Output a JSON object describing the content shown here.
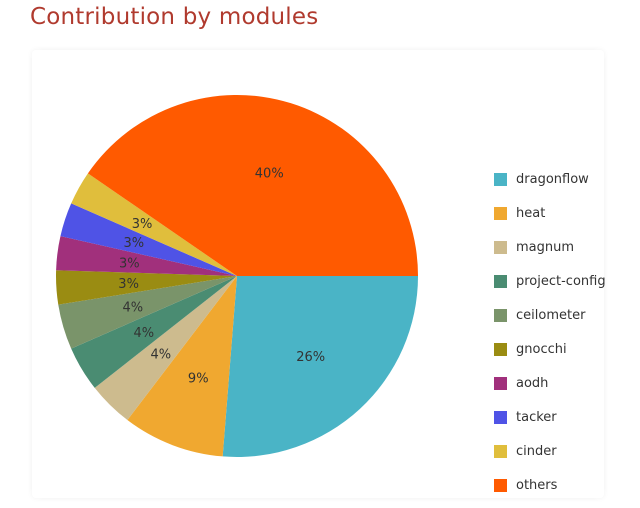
{
  "header": {
    "title": "Contribution by modules"
  },
  "chart_data": {
    "type": "pie",
    "title": "Contribution by modules",
    "legend_position": "right",
    "slices": [
      {
        "label": "dragonflow",
        "value": 26,
        "display": "26%",
        "color": "#4ab4c6"
      },
      {
        "label": "heat",
        "value": 9,
        "display": "9%",
        "color": "#f0a830"
      },
      {
        "label": "magnum",
        "value": 4,
        "display": "4%",
        "color": "#cdbb8e"
      },
      {
        "label": "project-config",
        "value": 4,
        "display": "4%",
        "color": "#4a8c72"
      },
      {
        "label": "ceilometer",
        "value": 4,
        "display": "4%",
        "color": "#7a946a"
      },
      {
        "label": "gnocchi",
        "value": 3,
        "display": "3%",
        "color": "#9a8c12"
      },
      {
        "label": "aodh",
        "value": 3,
        "display": "3%",
        "color": "#a1307c"
      },
      {
        "label": "tacker",
        "value": 3,
        "display": "3%",
        "color": "#4f53e6"
      },
      {
        "label": "cinder",
        "value": 3,
        "display": "3%",
        "color": "#e0be3c"
      },
      {
        "label": "others",
        "value": 40,
        "display": "40%",
        "color": "#ff5a00"
      }
    ]
  }
}
